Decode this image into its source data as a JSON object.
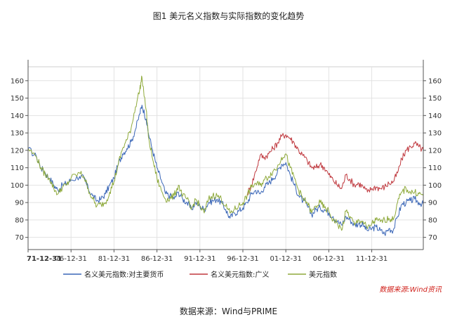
{
  "chart_data": {
    "type": "line",
    "title": "图1  美元名义指数与实际指数的变化趋势",
    "xlabel": "",
    "ylabel": "",
    "ylim": [
      63,
      168
    ],
    "yticks": [
      70,
      80,
      90,
      100,
      110,
      120,
      130,
      140,
      150,
      160
    ],
    "x_ticks": [
      "71-12-31",
      "76-12-31",
      "81-12-31",
      "86-12-31",
      "91-12-31",
      "96-12-31",
      "01-12-31",
      "06-12-31",
      "11-12-31"
    ],
    "grid": true,
    "legend_position": "bottom",
    "x": [
      "1971-12-31",
      "1972-12-31",
      "1973-06-30",
      "1973-12-31",
      "1974-06-30",
      "1974-12-31",
      "1975-06-30",
      "1975-12-31",
      "1976-06-30",
      "1976-12-31",
      "1977-12-31",
      "1978-06-30",
      "1978-12-31",
      "1979-06-30",
      "1979-12-31",
      "1980-06-30",
      "1980-12-31",
      "1981-06-30",
      "1981-12-31",
      "1982-06-30",
      "1982-12-31",
      "1983-06-30",
      "1983-12-31",
      "1984-06-30",
      "1984-12-31",
      "1985-03-31",
      "1985-09-30",
      "1985-12-31",
      "1986-06-30",
      "1986-12-31",
      "1987-06-30",
      "1987-12-31",
      "1988-06-30",
      "1988-12-31",
      "1989-06-30",
      "1989-12-31",
      "1990-06-30",
      "1990-12-31",
      "1991-06-30",
      "1991-12-31",
      "1992-06-30",
      "1992-12-31",
      "1993-06-30",
      "1993-12-31",
      "1994-06-30",
      "1994-12-31",
      "1995-06-30",
      "1995-12-31",
      "1996-06-30",
      "1996-12-31",
      "1997-06-30",
      "1997-12-31",
      "1998-06-30",
      "1998-12-31",
      "1999-06-30",
      "1999-12-31",
      "2000-06-30",
      "2000-12-31",
      "2001-06-30",
      "2001-12-31",
      "2002-06-30",
      "2002-12-31",
      "2003-06-30",
      "2003-12-31",
      "2004-06-30",
      "2004-12-31",
      "2005-06-30",
      "2005-12-31",
      "2006-06-30",
      "2006-12-31",
      "2007-06-30",
      "2007-12-31",
      "2008-06-30",
      "2008-12-31",
      "2009-06-30",
      "2009-12-31",
      "2010-06-30",
      "2010-12-31",
      "2011-06-30",
      "2011-12-31",
      "2012-06-30",
      "2012-12-31",
      "2013-06-30",
      "2013-12-31",
      "2014-06-30",
      "2014-12-31",
      "2015-06-30",
      "2015-12-31",
      "2016-06-30",
      "2016-12-31",
      "2017-06-30",
      "2017-12-31"
    ],
    "series": [
      {
        "name": "名义美元指数:对主要货币",
        "color": "#3a66b7",
        "values": [
          121,
          116,
          110,
          107,
          104,
          100,
          97,
          100,
          101,
          103,
          105,
          104,
          98,
          94,
          91,
          92,
          95,
          100,
          104,
          112,
          118,
          121,
          125,
          132,
          141,
          146,
          138,
          130,
          120,
          110,
          103,
          95,
          94,
          92,
          96,
          92,
          90,
          86,
          90,
          88,
          86,
          90,
          91,
          92,
          90,
          86,
          81,
          84,
          85,
          87,
          90,
          95,
          97,
          95,
          99,
          101,
          104,
          107,
          112,
          113,
          106,
          100,
          94,
          91,
          88,
          83,
          86,
          87,
          86,
          84,
          82,
          79,
          77,
          82,
          80,
          77,
          78,
          77,
          74,
          75,
          76,
          74,
          72,
          75,
          74,
          82,
          89,
          90,
          91,
          92,
          90,
          89
        ]
      },
      {
        "name": "名义美元指数:广义",
        "color": "#c0393f",
        "values": [
          null,
          null,
          null,
          null,
          null,
          null,
          null,
          null,
          null,
          null,
          null,
          null,
          null,
          null,
          null,
          null,
          null,
          null,
          null,
          null,
          null,
          null,
          null,
          null,
          null,
          null,
          null,
          null,
          null,
          null,
          null,
          null,
          null,
          null,
          null,
          null,
          null,
          null,
          null,
          null,
          null,
          null,
          null,
          null,
          null,
          null,
          null,
          null,
          null,
          null,
          95,
          100,
          108,
          117,
          116,
          118,
          121,
          124,
          128,
          129,
          127,
          124,
          120,
          117,
          114,
          110,
          110,
          112,
          110,
          106,
          103,
          100,
          98,
          106,
          103,
          100,
          101,
          99,
          96,
          98,
          99,
          98,
          99,
          101,
          102,
          107,
          115,
          120,
          122,
          124,
          122,
          120
        ]
      },
      {
        "name": "美元指数",
        "color": "#8faa3c",
        "values": [
          121,
          116,
          110,
          106,
          104,
          98,
          95,
          99,
          100,
          104,
          107,
          105,
          98,
          92,
          88,
          89,
          90,
          96,
          102,
          112,
          121,
          126,
          133,
          145,
          155,
          162,
          143,
          128,
          115,
          104,
          97,
          92,
          92,
          94,
          100,
          94,
          92,
          86,
          92,
          88,
          84,
          92,
          94,
          94,
          92,
          88,
          84,
          86,
          88,
          90,
          94,
          99,
          101,
          100,
          103,
          105,
          108,
          110,
          116,
          118,
          110,
          104,
          97,
          92,
          90,
          84,
          88,
          90,
          87,
          85,
          80,
          78,
          74,
          85,
          82,
          77,
          80,
          79,
          75,
          78,
          80,
          79,
          80,
          81,
          80,
          90,
          96,
          98,
          96,
          96,
          95,
          94
        ]
      }
    ]
  },
  "source_note": "数据来源:Wind资讯",
  "footer_note": "数据来源：Wind与PRIME",
  "colors": {
    "axis": "#555555",
    "grid": "#e2e2e2",
    "source_note": "#d0201a"
  }
}
